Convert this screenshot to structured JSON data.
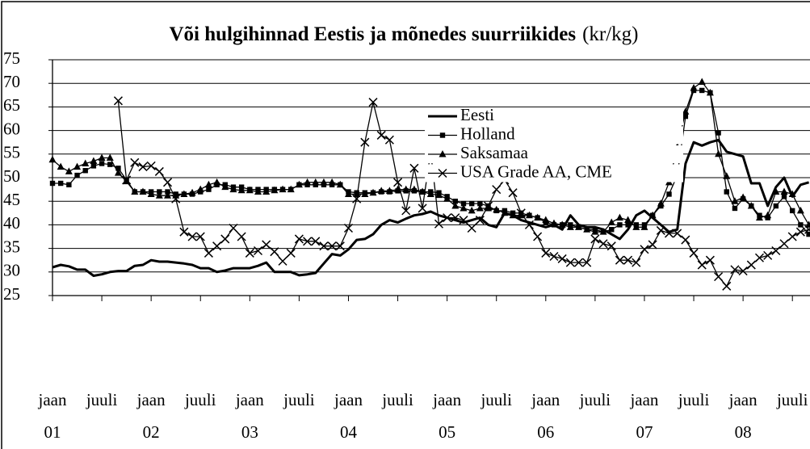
{
  "chart_data": {
    "type": "line",
    "title": "Või hulgihinnad Eestis ja mõnedes suurriikides",
    "title_unit": "(kr/kg)",
    "ylim": [
      25,
      75
    ],
    "yticks": [
      25,
      30,
      35,
      40,
      45,
      50,
      55,
      60,
      65,
      70,
      75
    ],
    "grid": true,
    "xlim": [
      0,
      92
    ],
    "xticks": [
      {
        "value": 0,
        "label": "jaan",
        "year": "01"
      },
      {
        "value": 6,
        "label": "juuli"
      },
      {
        "value": 12,
        "label": "jaan",
        "year": "02"
      },
      {
        "value": 18,
        "label": "juuli"
      },
      {
        "value": 24,
        "label": "jaan",
        "year": "03"
      },
      {
        "value": 30,
        "label": "juuli"
      },
      {
        "value": 36,
        "label": "jaan",
        "year": "04"
      },
      {
        "value": 42,
        "label": "juuli"
      },
      {
        "value": 48,
        "label": "jaan",
        "year": "05"
      },
      {
        "value": 54,
        "label": "juuli"
      },
      {
        "value": 60,
        "label": "jaan",
        "year": "06"
      },
      {
        "value": 66,
        "label": "juuli"
      },
      {
        "value": 72,
        "label": "jaan",
        "year": "07"
      },
      {
        "value": 78,
        "label": "juuli"
      },
      {
        "value": 84,
        "label": "jaan",
        "year": "08"
      },
      {
        "value": 90,
        "label": "juuli"
      }
    ],
    "legend": "upper-center",
    "series": [
      {
        "name": "Eesti",
        "color": "#000000",
        "marker": "none",
        "width": 3,
        "values": [
          31,
          31.5,
          31.2,
          30.5,
          30.5,
          29.2,
          29.5,
          30,
          30.2,
          30.2,
          31.3,
          31.5,
          32.5,
          32.2,
          32.2,
          32,
          31.8,
          31.5,
          30.8,
          30.8,
          30,
          30.3,
          30.8,
          30.8,
          30.8,
          31.3,
          32,
          30,
          30,
          30,
          29.3,
          29.5,
          29.8,
          31.8,
          33.8,
          33.5,
          34.8,
          36.8,
          37,
          38,
          40,
          41,
          40.5,
          41.3,
          42,
          42.3,
          42.8,
          42,
          41.5,
          41,
          40.5,
          41,
          41.5,
          40,
          39.5,
          42.5,
          42,
          41,
          40.5,
          40,
          39.5,
          40,
          39,
          42,
          40,
          39.5,
          39.5,
          39,
          38,
          37,
          39,
          42,
          43,
          41.5,
          40,
          38.5,
          39,
          53,
          57.5,
          56.8,
          57.5,
          58,
          55.5,
          55,
          54.5,
          48.8,
          48.8,
          44,
          48,
          50,
          46,
          48.5,
          49
        ]
      },
      {
        "name": "Holland",
        "color": "#000000",
        "marker": "square",
        "width": 1.3,
        "values": [
          48.8,
          48.8,
          48.5,
          50.5,
          51.5,
          52.5,
          53,
          52.8,
          52,
          49.5,
          47,
          47,
          47,
          47,
          47,
          46.5,
          46.5,
          46.5,
          47,
          47.5,
          48.5,
          48.5,
          48,
          48,
          47.5,
          47.5,
          47.5,
          47.5,
          47.5,
          47.5,
          48.5,
          48.5,
          48.5,
          48.5,
          48.5,
          48.5,
          47,
          46.8,
          46.8,
          46.8,
          47,
          47,
          47.2,
          47.2,
          47.2,
          47,
          47,
          46.8,
          46,
          45,
          44.5,
          44.5,
          44.5,
          44,
          43,
          43,
          42.5,
          42.5,
          42,
          41.5,
          40.5,
          40,
          40,
          40,
          39.5,
          39,
          39,
          38.5,
          39,
          40,
          40,
          40,
          40,
          42,
          44,
          46.5,
          50.5,
          63,
          68.5,
          68.5,
          68,
          59.5,
          47,
          43.5,
          45.5,
          44,
          42,
          41.5,
          44,
          46,
          43,
          40,
          38
        ]
      },
      {
        "name": "Saksamaa",
        "color": "#000000",
        "marker": "triangle",
        "width": 1.3,
        "values": [
          53.8,
          52.3,
          51.3,
          52.3,
          53,
          53.5,
          54.2,
          54.2,
          51,
          49.2,
          47,
          47,
          46.5,
          46.2,
          46.2,
          46.2,
          46.5,
          46.8,
          47.5,
          48.5,
          49,
          48,
          47.5,
          47.3,
          47.3,
          47,
          47,
          47.3,
          47.5,
          47.5,
          48.5,
          49,
          49,
          49,
          49,
          48.5,
          46.5,
          46.5,
          46.5,
          46.8,
          47.2,
          47.2,
          47.5,
          47.5,
          47.5,
          47,
          46.5,
          46.3,
          45.5,
          44,
          43.5,
          43,
          43.5,
          43.5,
          43.2,
          42.5,
          42,
          42,
          42,
          41.5,
          41,
          40.3,
          40,
          39.5,
          39.5,
          39,
          38.5,
          38.5,
          40.5,
          41.5,
          41,
          39.5,
          39.5,
          42,
          44.5,
          49,
          56.5,
          64,
          69,
          70.3,
          68,
          55,
          50.3,
          45,
          45.8,
          44,
          41.5,
          42,
          47,
          47,
          46.5,
          43,
          40
        ]
      },
      {
        "name": "USA Grade AA, CME",
        "color": "#000000",
        "marker": "x",
        "width": 1.3,
        "values": [
          null,
          null,
          null,
          null,
          null,
          null,
          null,
          null,
          66.3,
          49.5,
          53.2,
          52.3,
          52.5,
          51.3,
          49,
          45.5,
          38.5,
          37.5,
          37.5,
          34,
          35.5,
          37,
          39.3,
          37.5,
          34,
          34.5,
          35.8,
          34.3,
          32.3,
          34,
          37,
          36.5,
          36.5,
          35.5,
          35.5,
          35.5,
          39.3,
          45.5,
          57.5,
          66,
          59,
          58,
          49,
          43,
          52,
          43.5,
          55.5,
          40.2,
          41.5,
          41.5,
          41,
          39.3,
          41,
          44,
          47.5,
          49.5,
          46.8,
          42.5,
          40,
          37.5,
          34,
          33.3,
          32.8,
          32,
          32,
          32,
          37,
          36,
          35.5,
          32.5,
          32.5,
          32,
          34.8,
          35.8,
          38.8,
          38.2,
          38.2,
          36.8,
          34,
          31.5,
          32.5,
          29,
          27,
          30.5,
          30.2,
          31.5,
          33,
          33.5,
          34.5,
          36,
          37.5,
          38.5,
          39
        ]
      }
    ]
  }
}
